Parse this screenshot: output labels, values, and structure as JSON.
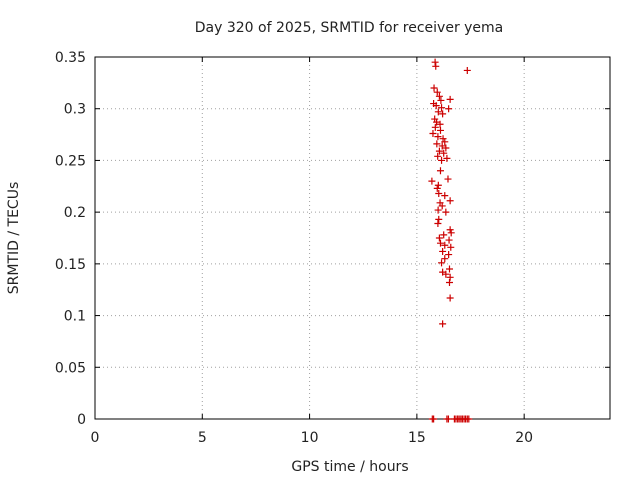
{
  "chart_data": {
    "type": "scatter",
    "title": "Day 320 of 2025, SRMTID for receiver yema",
    "xlabel": "GPS time / hours",
    "ylabel": "SRMTID / TECUs",
    "xlim": [
      0,
      24
    ],
    "ylim": [
      0,
      0.35
    ],
    "xticks": [
      "0",
      "5",
      "10",
      "15",
      "20"
    ],
    "xtick_values": [
      0,
      5,
      10,
      15,
      20
    ],
    "yticks": [
      "0",
      "0.05",
      "0.1",
      "0.15",
      "0.2",
      "0.25",
      "0.3",
      "0.35"
    ],
    "ytick_values": [
      0,
      0.05,
      0.1,
      0.15,
      0.2,
      0.25,
      0.3,
      0.35
    ],
    "grid": true,
    "series": [
      {
        "name": "SRMTID",
        "color": "#cc0000",
        "marker": "plus",
        "points": [
          [
            15.85,
            0.345
          ],
          [
            15.88,
            0.341
          ],
          [
            17.35,
            0.337
          ],
          [
            15.8,
            0.32
          ],
          [
            15.95,
            0.316
          ],
          [
            16.05,
            0.312
          ],
          [
            16.12,
            0.308
          ],
          [
            16.55,
            0.309
          ],
          [
            15.78,
            0.305
          ],
          [
            15.9,
            0.303
          ],
          [
            16.15,
            0.301
          ],
          [
            16.48,
            0.3
          ],
          [
            16.0,
            0.297
          ],
          [
            16.2,
            0.295
          ],
          [
            15.83,
            0.29
          ],
          [
            15.92,
            0.287
          ],
          [
            16.08,
            0.285
          ],
          [
            15.86,
            0.282
          ],
          [
            16.1,
            0.279
          ],
          [
            15.75,
            0.276
          ],
          [
            15.98,
            0.273
          ],
          [
            16.22,
            0.271
          ],
          [
            16.3,
            0.268
          ],
          [
            15.93,
            0.266
          ],
          [
            16.18,
            0.264
          ],
          [
            16.35,
            0.262
          ],
          [
            16.05,
            0.259
          ],
          [
            16.25,
            0.257
          ],
          [
            15.97,
            0.254
          ],
          [
            16.4,
            0.252
          ],
          [
            16.15,
            0.25
          ],
          [
            16.1,
            0.24
          ],
          [
            16.45,
            0.232
          ],
          [
            15.7,
            0.23
          ],
          [
            16.0,
            0.226
          ],
          [
            15.95,
            0.223
          ],
          [
            16.02,
            0.218
          ],
          [
            16.3,
            0.216
          ],
          [
            16.55,
            0.211
          ],
          [
            16.08,
            0.209
          ],
          [
            16.18,
            0.206
          ],
          [
            15.99,
            0.202
          ],
          [
            16.35,
            0.2
          ],
          [
            16.02,
            0.193
          ],
          [
            15.98,
            0.189
          ],
          [
            16.55,
            0.183
          ],
          [
            16.6,
            0.18
          ],
          [
            16.25,
            0.178
          ],
          [
            16.05,
            0.175
          ],
          [
            16.5,
            0.173
          ],
          [
            16.1,
            0.17
          ],
          [
            16.3,
            0.168
          ],
          [
            16.58,
            0.166
          ],
          [
            16.2,
            0.162
          ],
          [
            16.48,
            0.159
          ],
          [
            16.3,
            0.155
          ],
          [
            16.15,
            0.151
          ],
          [
            16.52,
            0.145
          ],
          [
            16.2,
            0.142
          ],
          [
            16.35,
            0.14
          ],
          [
            16.55,
            0.137
          ],
          [
            16.52,
            0.132
          ],
          [
            16.55,
            0.117
          ],
          [
            16.2,
            0.092
          ]
        ]
      },
      {
        "name": "zero-level",
        "color": "#cc0000",
        "marker": "plus",
        "points": [
          [
            15.72,
            0
          ],
          [
            15.78,
            0
          ],
          [
            16.4,
            0
          ],
          [
            16.47,
            0
          ],
          [
            16.75,
            0
          ],
          [
            16.82,
            0
          ],
          [
            16.9,
            0
          ],
          [
            16.97,
            0
          ],
          [
            17.05,
            0
          ],
          [
            17.12,
            0
          ],
          [
            17.2,
            0
          ],
          [
            17.27,
            0
          ],
          [
            17.35,
            0
          ],
          [
            17.42,
            0
          ]
        ]
      }
    ]
  }
}
